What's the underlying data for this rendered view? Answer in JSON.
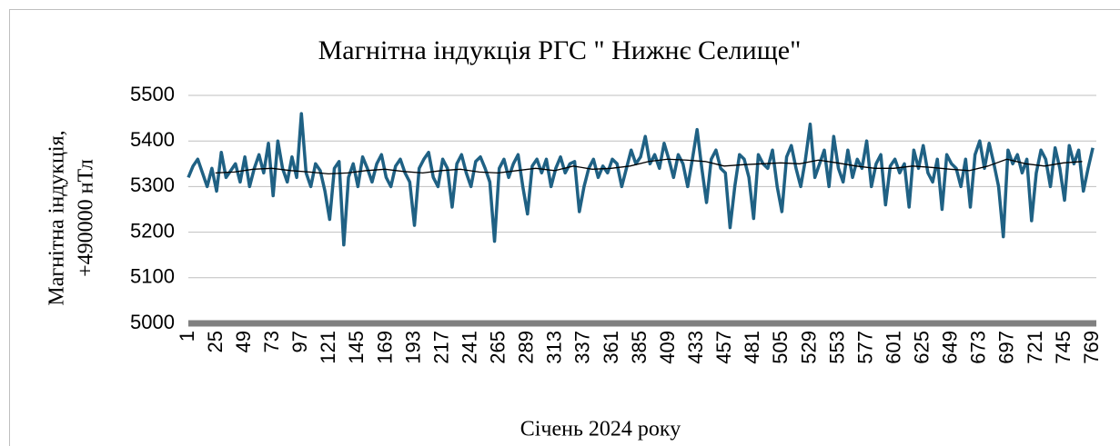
{
  "chart_data": {
    "type": "line",
    "title": "Магнітна індукція РГС \" Нижнє Селище\"",
    "ylabel": [
      "Магнітна індукція,",
      "+490000 нТл"
    ],
    "xlabel": "Січень 2024 року",
    "xlim": [
      1,
      772
    ],
    "xticks": [
      1,
      25,
      49,
      73,
      97,
      121,
      145,
      169,
      193,
      217,
      241,
      265,
      289,
      313,
      337,
      361,
      385,
      409,
      433,
      457,
      481,
      505,
      529,
      553,
      577,
      601,
      625,
      649,
      673,
      697,
      721,
      745,
      769
    ],
    "ylim": [
      5000,
      5500
    ],
    "yticks": [
      5000,
      5100,
      5200,
      5300,
      5400,
      5500
    ],
    "grid": true,
    "series": [
      {
        "color": "#1f6184",
        "x": [
          1,
          5,
          9,
          13,
          17,
          21,
          25,
          29,
          33,
          37,
          41,
          45,
          49,
          53,
          57,
          61,
          65,
          69,
          73,
          77,
          81,
          85,
          89,
          93,
          97,
          101,
          105,
          109,
          113,
          117,
          121,
          125,
          129,
          133,
          137,
          141,
          145,
          149,
          153,
          157,
          161,
          165,
          169,
          173,
          177,
          181,
          185,
          189,
          193,
          197,
          201,
          205,
          209,
          213,
          217,
          221,
          225,
          229,
          233,
          237,
          241,
          245,
          249,
          253,
          257,
          261,
          265,
          269,
          273,
          277,
          281,
          285,
          289,
          293,
          297,
          301,
          305,
          309,
          313,
          317,
          321,
          325,
          329,
          333,
          337,
          341,
          345,
          349,
          353,
          357,
          361,
          365,
          369,
          373,
          377,
          381,
          385,
          389,
          393,
          397,
          401,
          405,
          409,
          413,
          417,
          421,
          425,
          429,
          433,
          437,
          441,
          445,
          449,
          453,
          457,
          461,
          465,
          469,
          473,
          477,
          481,
          485,
          489,
          493,
          497,
          501,
          505,
          509,
          513,
          517,
          521,
          525,
          529,
          533,
          537,
          541,
          545,
          549,
          553,
          557,
          561,
          565,
          569,
          573,
          577,
          581,
          585,
          589,
          593,
          597,
          601,
          605,
          609,
          613,
          617,
          621,
          625,
          629,
          633,
          637,
          641,
          645,
          649,
          653,
          657,
          661,
          665,
          669,
          673,
          677,
          681,
          685,
          689,
          693,
          697,
          701,
          705,
          709,
          713,
          717,
          721,
          725,
          729,
          733,
          737,
          741,
          745,
          749,
          753,
          757,
          761,
          765,
          769
        ],
        "values": [
          5320,
          5345,
          5360,
          5330,
          5300,
          5340,
          5290,
          5375,
          5320,
          5335,
          5350,
          5310,
          5365,
          5300,
          5340,
          5370,
          5330,
          5395,
          5280,
          5400,
          5340,
          5310,
          5365,
          5320,
          5460,
          5330,
          5300,
          5350,
          5335,
          5290,
          5228,
          5340,
          5355,
          5172,
          5320,
          5350,
          5300,
          5365,
          5340,
          5310,
          5350,
          5370,
          5320,
          5300,
          5345,
          5360,
          5330,
          5310,
          5215,
          5340,
          5360,
          5375,
          5320,
          5300,
          5360,
          5340,
          5255,
          5350,
          5370,
          5330,
          5300,
          5355,
          5365,
          5340,
          5310,
          5180,
          5340,
          5360,
          5320,
          5350,
          5370,
          5300,
          5240,
          5345,
          5360,
          5330,
          5360,
          5300,
          5340,
          5365,
          5330,
          5350,
          5355,
          5245,
          5300,
          5340,
          5360,
          5320,
          5345,
          5330,
          5360,
          5350,
          5300,
          5340,
          5380,
          5350,
          5365,
          5410,
          5350,
          5370,
          5340,
          5395,
          5360,
          5320,
          5370,
          5350,
          5300,
          5360,
          5425,
          5340,
          5265,
          5360,
          5380,
          5340,
          5330,
          5210,
          5300,
          5370,
          5360,
          5320,
          5230,
          5370,
          5350,
          5340,
          5380,
          5300,
          5245,
          5365,
          5390,
          5340,
          5300,
          5360,
          5437,
          5320,
          5350,
          5380,
          5300,
          5410,
          5340,
          5310,
          5380,
          5320,
          5360,
          5340,
          5400,
          5300,
          5350,
          5370,
          5260,
          5345,
          5360,
          5330,
          5350,
          5255,
          5380,
          5340,
          5390,
          5330,
          5310,
          5360,
          5250,
          5370,
          5350,
          5340,
          5300,
          5360,
          5255,
          5370,
          5400,
          5340,
          5395,
          5350,
          5300,
          5190,
          5380,
          5350,
          5370,
          5330,
          5360,
          5225,
          5330,
          5380,
          5360,
          5300,
          5385,
          5340,
          5270,
          5390,
          5350,
          5380,
          5290,
          5340,
          5385
        ]
      },
      {
        "color": "#000000",
        "x": [
          24,
          40,
          56,
          72,
          88,
          104,
          120,
          136,
          152,
          168,
          184,
          200,
          216,
          232,
          248,
          264,
          280,
          296,
          312,
          328,
          344,
          360,
          376,
          392,
          408,
          424,
          440,
          456,
          472,
          488,
          504,
          520,
          536,
          552,
          568,
          584,
          600,
          616,
          632,
          648,
          664,
          680,
          696,
          712,
          728,
          744,
          760
        ],
        "values": [
          5330,
          5332,
          5338,
          5340,
          5335,
          5332,
          5328,
          5330,
          5335,
          5338,
          5333,
          5330,
          5335,
          5338,
          5332,
          5330,
          5335,
          5340,
          5335,
          5345,
          5338,
          5340,
          5345,
          5355,
          5360,
          5358,
          5355,
          5345,
          5348,
          5350,
          5352,
          5350,
          5358,
          5352,
          5345,
          5340,
          5340,
          5345,
          5342,
          5338,
          5335,
          5345,
          5360,
          5350,
          5345,
          5352,
          5355
        ]
      }
    ]
  }
}
